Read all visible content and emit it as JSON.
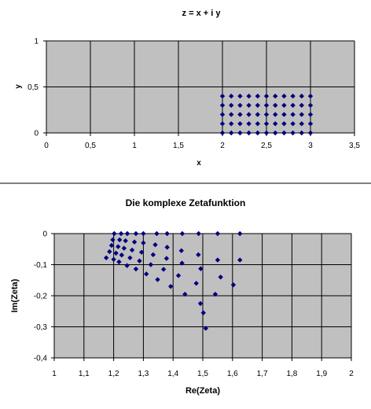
{
  "chart_data": [
    {
      "type": "scatter",
      "title": "z = x + i y",
      "xlabel": "x",
      "ylabel": "y",
      "xlim": [
        0,
        3.5
      ],
      "ylim": [
        0,
        1
      ],
      "xticks": [
        "0",
        "0,5",
        "1",
        "1,5",
        "2",
        "2,5",
        "3",
        "3,5"
      ],
      "yticks": [
        "0",
        "0,5",
        "1"
      ],
      "grid": true,
      "marker_color": "#000080",
      "points": [
        [
          2.0,
          0.0
        ],
        [
          2.1,
          0.0
        ],
        [
          2.2,
          0.0
        ],
        [
          2.3,
          0.0
        ],
        [
          2.4,
          0.0
        ],
        [
          2.5,
          0.0
        ],
        [
          2.6,
          0.0
        ],
        [
          2.7,
          0.0
        ],
        [
          2.8,
          0.0
        ],
        [
          2.9,
          0.0
        ],
        [
          3.0,
          0.0
        ],
        [
          2.0,
          0.1
        ],
        [
          2.1,
          0.1
        ],
        [
          2.2,
          0.1
        ],
        [
          2.3,
          0.1
        ],
        [
          2.4,
          0.1
        ],
        [
          2.5,
          0.1
        ],
        [
          2.6,
          0.1
        ],
        [
          2.7,
          0.1
        ],
        [
          2.8,
          0.1
        ],
        [
          2.9,
          0.1
        ],
        [
          3.0,
          0.1
        ],
        [
          2.0,
          0.2
        ],
        [
          2.1,
          0.2
        ],
        [
          2.2,
          0.2
        ],
        [
          2.3,
          0.2
        ],
        [
          2.4,
          0.2
        ],
        [
          2.5,
          0.2
        ],
        [
          2.6,
          0.2
        ],
        [
          2.7,
          0.2
        ],
        [
          2.8,
          0.2
        ],
        [
          2.9,
          0.2
        ],
        [
          3.0,
          0.2
        ],
        [
          2.0,
          0.3
        ],
        [
          2.1,
          0.3
        ],
        [
          2.2,
          0.3
        ],
        [
          2.3,
          0.3
        ],
        [
          2.4,
          0.3
        ],
        [
          2.5,
          0.3
        ],
        [
          2.6,
          0.3
        ],
        [
          2.7,
          0.3
        ],
        [
          2.8,
          0.3
        ],
        [
          2.9,
          0.3
        ],
        [
          3.0,
          0.3
        ],
        [
          2.0,
          0.4
        ],
        [
          2.1,
          0.4
        ],
        [
          2.2,
          0.4
        ],
        [
          2.3,
          0.4
        ],
        [
          2.4,
          0.4
        ],
        [
          2.5,
          0.4
        ],
        [
          2.6,
          0.4
        ],
        [
          2.7,
          0.4
        ],
        [
          2.8,
          0.4
        ],
        [
          2.9,
          0.4
        ],
        [
          3.0,
          0.4
        ]
      ]
    },
    {
      "type": "scatter",
      "title": "Die komplexe Zetafunktion",
      "xlabel": "Re(Zeta)",
      "ylabel": "Im(Zeta)",
      "xlim": [
        1,
        2
      ],
      "ylim": [
        -0.4,
        0
      ],
      "xticks": [
        "1",
        "1,1",
        "1,2",
        "1,3",
        "1,4",
        "1,5",
        "1,6",
        "1,7",
        "1,8",
        "1,9",
        "2"
      ],
      "yticks": [
        "0",
        "-0,1",
        "-0,2",
        "-0,3",
        "-0,4"
      ],
      "grid": true,
      "marker_color": "#000080",
      "points": [
        [
          1.202,
          0.0
        ],
        [
          1.225,
          0.0
        ],
        [
          1.246,
          0.0
        ],
        [
          1.275,
          0.0
        ],
        [
          1.3,
          0.0
        ],
        [
          1.345,
          0.0
        ],
        [
          1.38,
          0.0
        ],
        [
          1.431,
          0.0
        ],
        [
          1.486,
          0.0
        ],
        [
          1.55,
          0.0
        ],
        [
          1.625,
          0.0
        ],
        [
          1.197,
          -0.02
        ],
        [
          1.22,
          -0.02
        ],
        [
          1.24,
          -0.023
        ],
        [
          1.27,
          -0.027
        ],
        [
          1.3,
          -0.03
        ],
        [
          1.34,
          -0.036
        ],
        [
          1.38,
          -0.044
        ],
        [
          1.428,
          -0.055
        ],
        [
          1.485,
          -0.068
        ],
        [
          1.55,
          -0.085
        ],
        [
          1.625,
          -0.085
        ],
        [
          1.193,
          -0.038
        ],
        [
          1.215,
          -0.042
        ],
        [
          1.235,
          -0.047
        ],
        [
          1.262,
          -0.053
        ],
        [
          1.294,
          -0.06
        ],
        [
          1.333,
          -0.068
        ],
        [
          1.378,
          -0.08
        ],
        [
          1.43,
          -0.095
        ],
        [
          1.493,
          -0.113
        ],
        [
          1.56,
          -0.14
        ],
        [
          1.603,
          -0.165
        ],
        [
          1.186,
          -0.058
        ],
        [
          1.208,
          -0.063
        ],
        [
          1.227,
          -0.069
        ],
        [
          1.255,
          -0.078
        ],
        [
          1.287,
          -0.088
        ],
        [
          1.325,
          -0.1
        ],
        [
          1.368,
          -0.115
        ],
        [
          1.418,
          -0.135
        ],
        [
          1.478,
          -0.16
        ],
        [
          1.542,
          -0.195
        ],
        [
          1.175,
          -0.078
        ],
        [
          1.2,
          -0.083
        ],
        [
          1.218,
          -0.091
        ],
        [
          1.245,
          -0.103
        ],
        [
          1.275,
          -0.114
        ],
        [
          1.31,
          -0.13
        ],
        [
          1.348,
          -0.148
        ],
        [
          1.392,
          -0.17
        ],
        [
          1.44,
          -0.195
        ],
        [
          1.492,
          -0.225
        ],
        [
          1.502,
          -0.255
        ],
        [
          1.51,
          -0.305
        ]
      ]
    }
  ]
}
